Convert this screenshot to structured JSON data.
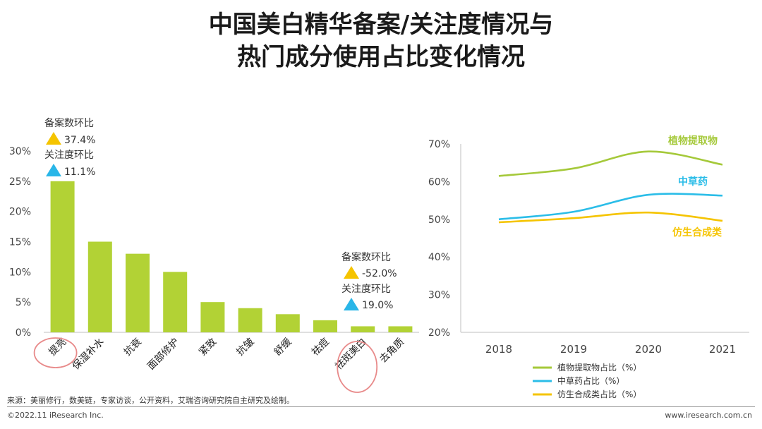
{
  "title": {
    "line1": "中国美白精华备案/关注度情况与",
    "line2": "热门成分使用占比变化情况"
  },
  "colors": {
    "bar": "#b2d235",
    "up_yellow": "#f5c400",
    "up_blue": "#29b6e8",
    "highlight_circle": "#e88a8a",
    "green_line": "#a5c93a",
    "blue_line": "#2bbde8",
    "yellow_line": "#f5c400"
  },
  "chart_data": [
    {
      "type": "bar",
      "categories": [
        "提亮",
        "保湿补水",
        "抗衰",
        "面部修护",
        "紧致",
        "抗皱",
        "舒缓",
        "祛痘",
        "祛斑美白",
        "去角质"
      ],
      "values": [
        25,
        15,
        13,
        10,
        5,
        4,
        3,
        2,
        1,
        1
      ],
      "ylim": [
        0,
        30
      ],
      "yticks": [
        "0%",
        "5%",
        "10%",
        "15%",
        "20%",
        "25%",
        "30%"
      ],
      "highlighted": [
        "提亮",
        "祛斑美白"
      ],
      "annotations": [
        {
          "category": "提亮",
          "filing_label": "备案数环比",
          "filing_value": "37.4%",
          "attention_label": "关注度环比",
          "attention_value": "11.1%"
        },
        {
          "category": "祛斑美白",
          "filing_label": "备案数环比",
          "filing_value": "-52.0%",
          "attention_label": "关注度环比",
          "attention_value": "19.0%"
        }
      ]
    },
    {
      "type": "line",
      "x": [
        "2018",
        "2019",
        "2020",
        "2021"
      ],
      "ylim": [
        20,
        70
      ],
      "yticks": [
        "20%",
        "30%",
        "40%",
        "50%",
        "60%",
        "70%"
      ],
      "series": [
        {
          "name": "植物提取物占比（%）",
          "label": "植物提取物",
          "values": [
            61.5,
            63.5,
            68,
            64.5
          ]
        },
        {
          "name": "中草药占比（%）",
          "label": "中草药",
          "values": [
            50,
            52,
            56.5,
            56.3
          ]
        },
        {
          "name": "仿生合成类占比（%）",
          "label": "仿生合成类",
          "values": [
            49.2,
            50.3,
            51.8,
            49.6
          ]
        }
      ]
    }
  ],
  "footer": {
    "source": "来源：美丽修行，数美链，专家访谈，公开资料，艾瑞咨询研究院自主研究及绘制。",
    "copyright": "©2022.11 iResearch Inc.",
    "website": "www.iresearch.com.cn"
  }
}
